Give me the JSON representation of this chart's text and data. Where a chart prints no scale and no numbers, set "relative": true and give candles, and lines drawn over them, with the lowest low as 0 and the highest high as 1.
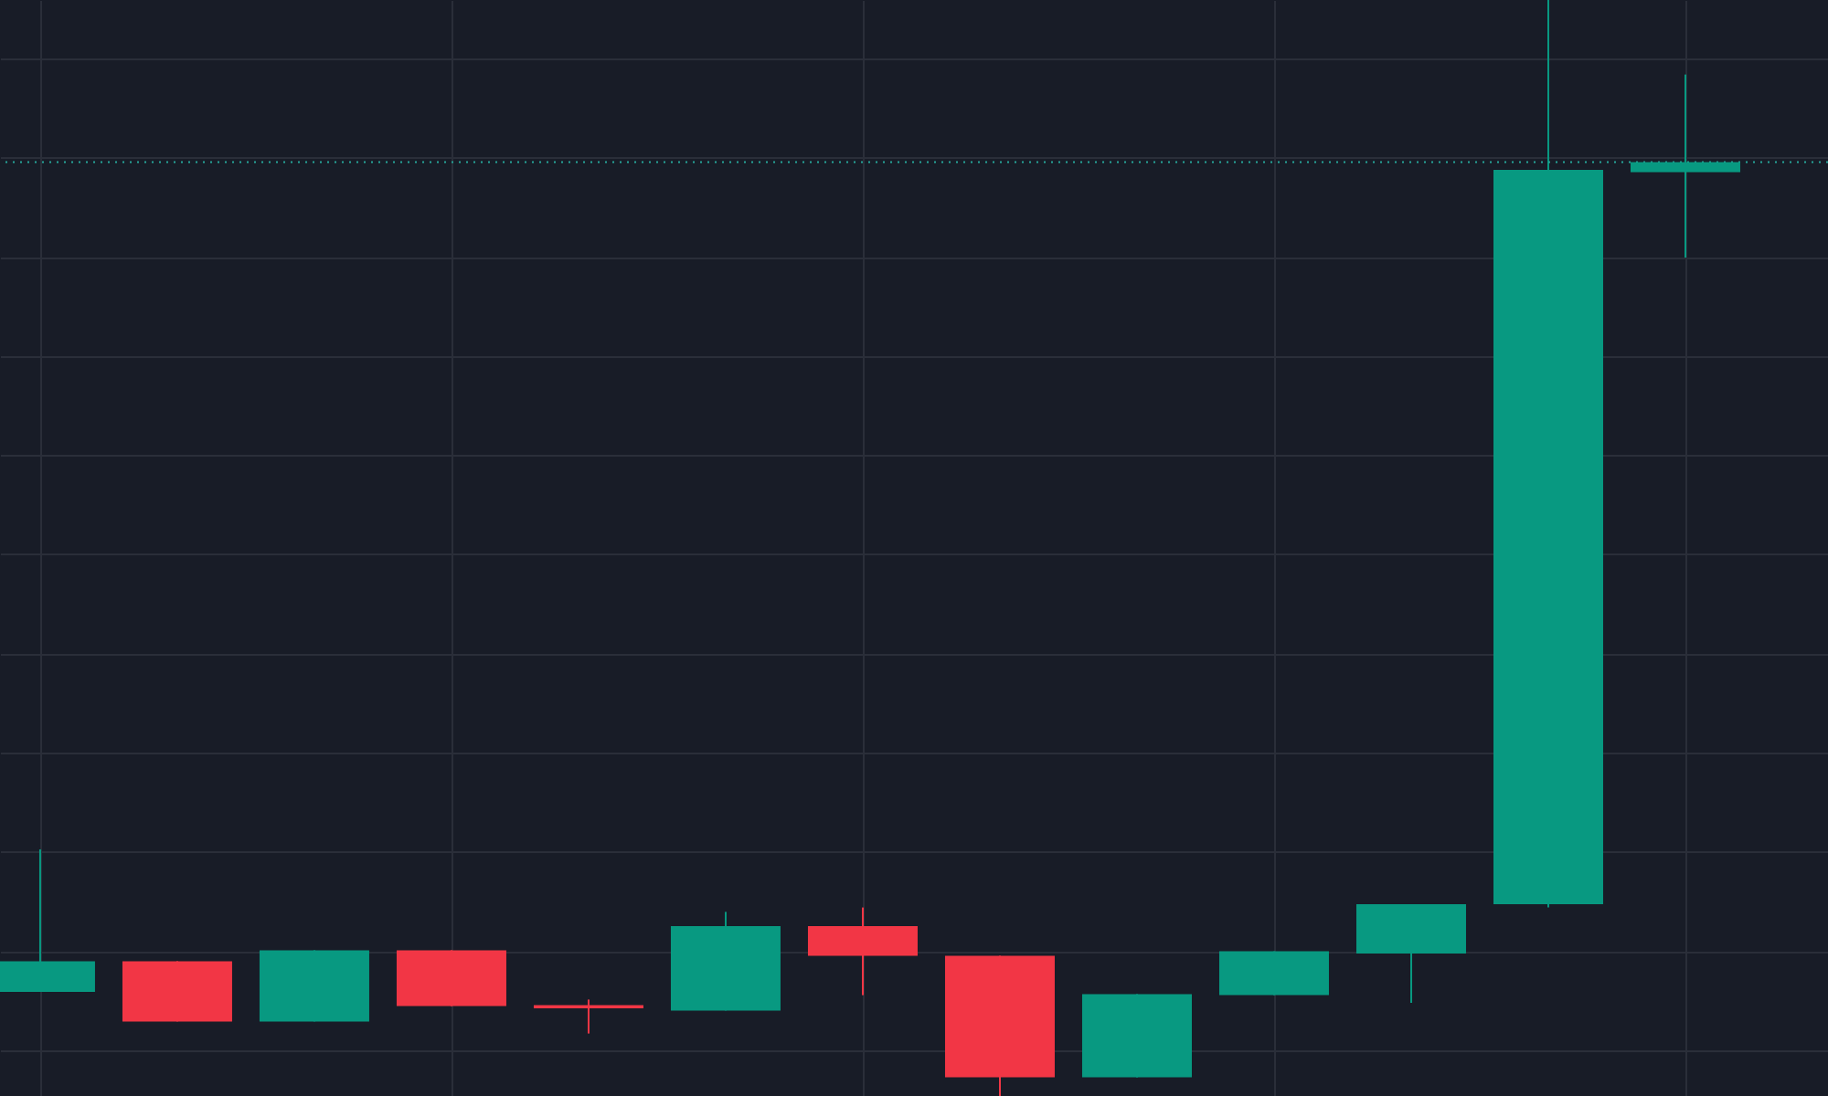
{
  "chart_data": {
    "type": "candlestick",
    "relative": true,
    "grid": true,
    "categories": [
      null,
      null,
      null,
      null,
      null,
      null,
      null,
      null,
      null,
      null,
      null,
      null,
      null
    ],
    "ohlc": [
      [
        0.095,
        0.225,
        0.095,
        0.123
      ],
      [
        0.123,
        0.123,
        0.068,
        0.068
      ],
      [
        0.068,
        0.133,
        0.068,
        0.133
      ],
      [
        0.133,
        0.133,
        0.082,
        0.082
      ],
      [
        0.083,
        0.088,
        0.057,
        0.08
      ],
      [
        0.078,
        0.168,
        0.078,
        0.155
      ],
      [
        0.155,
        0.172,
        0.092,
        0.128
      ],
      [
        0.128,
        0.128,
        0.0,
        0.017
      ],
      [
        0.017,
        0.093,
        0.017,
        0.093
      ],
      [
        0.092,
        0.132,
        0.092,
        0.132
      ],
      [
        0.13,
        0.175,
        0.085,
        0.175
      ],
      [
        0.175,
        1.0,
        0.172,
        0.845
      ],
      [
        0.843,
        0.932,
        0.765,
        0.852
      ]
    ],
    "ref_lines": [
      {
        "axis": "y",
        "value": 0.852,
        "label": null,
        "color": "#26a69a",
        "line_style": "dotted"
      }
    ]
  }
}
